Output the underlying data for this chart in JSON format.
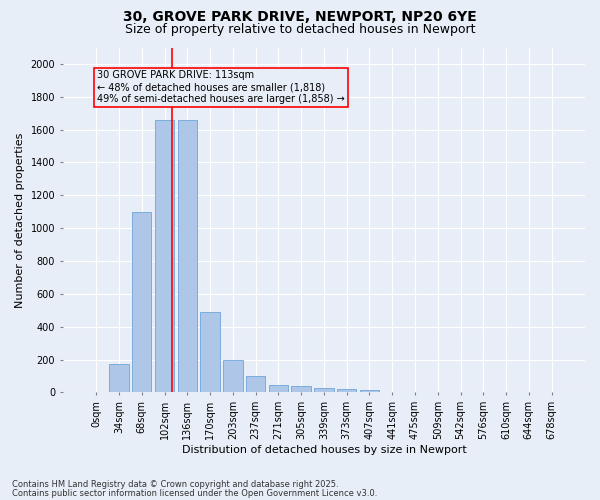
{
  "title1": "30, GROVE PARK DRIVE, NEWPORT, NP20 6YE",
  "title2": "Size of property relative to detached houses in Newport",
  "xlabel": "Distribution of detached houses by size in Newport",
  "ylabel": "Number of detached properties",
  "categories": [
    "0sqm",
    "34sqm",
    "68sqm",
    "102sqm",
    "136sqm",
    "170sqm",
    "203sqm",
    "237sqm",
    "271sqm",
    "305sqm",
    "339sqm",
    "373sqm",
    "407sqm",
    "441sqm",
    "475sqm",
    "509sqm",
    "542sqm",
    "576sqm",
    "610sqm",
    "644sqm",
    "678sqm"
  ],
  "values": [
    0,
    175,
    1100,
    1660,
    1660,
    490,
    200,
    100,
    45,
    40,
    25,
    20,
    15,
    5,
    0,
    0,
    0,
    0,
    0,
    0,
    0
  ],
  "bar_color": "#aec6e8",
  "bar_edge_color": "#5b9bd5",
  "vline_x": 3.33,
  "vline_color": "red",
  "annotation_text": "30 GROVE PARK DRIVE: 113sqm\n← 48% of detached houses are smaller (1,818)\n49% of semi-detached houses are larger (1,858) →",
  "annotation_box_color": "red",
  "ylim": [
    0,
    2100
  ],
  "yticks": [
    0,
    200,
    400,
    600,
    800,
    1000,
    1200,
    1400,
    1600,
    1800,
    2000
  ],
  "bg_color": "#e8eef7",
  "footer1": "Contains HM Land Registry data © Crown copyright and database right 2025.",
  "footer2": "Contains public sector information licensed under the Open Government Licence v3.0.",
  "title_fontsize": 10,
  "subtitle_fontsize": 9,
  "ylabel_fontsize": 8,
  "xlabel_fontsize": 8,
  "tick_fontsize": 7,
  "annotation_fontsize": 7
}
